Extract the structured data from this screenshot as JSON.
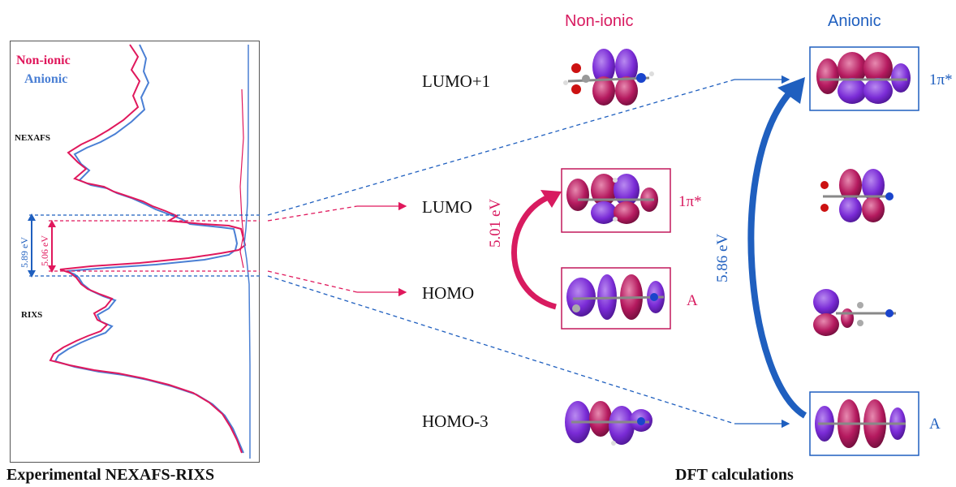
{
  "legend": {
    "non_ionic": "Non-ionic",
    "anionic": "Anionic"
  },
  "panel_labels": {
    "nexafs": "NEXAFS",
    "rixs": "RIXS"
  },
  "gaps": {
    "anionic_gap": "5.89 eV",
    "nonionic_gap": "5.06 eV",
    "nonionic_calc": "5.01 eV",
    "anionic_calc": "5.86 eV"
  },
  "orbitals": {
    "lumo1": "LUMO+1",
    "lumo": "LUMO",
    "homo": "HOMO",
    "homo3": "HOMO-3"
  },
  "columns": {
    "nonionic": "Non-ionic",
    "anionic": "Anionic"
  },
  "symmetry": {
    "nonionic_lumo": "1π*",
    "nonionic_homo": "A",
    "anionic_lumo": "1π*",
    "anionic_homo": "A"
  },
  "captions": {
    "left": "Experimental NEXAFS-RIXS",
    "right": "DFT calculations"
  },
  "colors": {
    "nonionic": "#d81b60",
    "anionic": "#1f5fbf",
    "lobe_purple": "#7a2bd6",
    "lobe_magenta": "#c2185b"
  }
}
